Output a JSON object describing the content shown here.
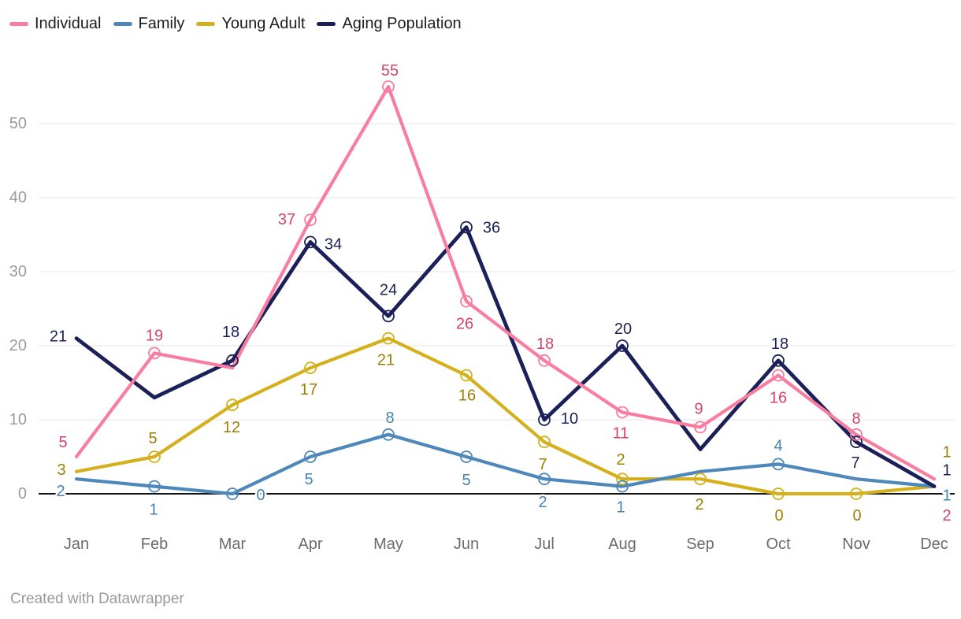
{
  "footer": {
    "text": "Created with Datawrapper"
  },
  "chart_data": {
    "type": "line",
    "title": "",
    "xlabel": "",
    "ylabel": "",
    "categories": [
      "Jan",
      "Feb",
      "Mar",
      "Apr",
      "May",
      "Jun",
      "Jul",
      "Aug",
      "Sep",
      "Oct",
      "Nov",
      "Dec"
    ],
    "y_ticks": [
      0,
      10,
      20,
      30,
      40,
      50
    ],
    "ylim": [
      0,
      58
    ],
    "grid": true,
    "legend_position": "top-left",
    "axis_colors": {
      "y_tick_label": "#9b9b9b",
      "x_tick_label": "#6b6b6b",
      "gridline": "#e6e6e6",
      "zero_line": "#141414"
    },
    "series": [
      {
        "name": "Individual",
        "color": "#f87da0",
        "label_color": "#d2426e",
        "values": [
          5,
          19,
          17,
          37,
          55,
          26,
          18,
          11,
          9,
          16,
          8,
          2
        ],
        "label_offsets": [
          [
            -17,
            -18
          ],
          [
            0,
            -22
          ],
          null,
          [
            -30,
            0
          ],
          [
            2,
            -20
          ],
          [
            -2,
            29
          ],
          [
            1,
            -21
          ],
          [
            -2,
            27
          ],
          [
            -2,
            -23
          ],
          [
            0,
            29
          ],
          [
            0,
            -20
          ],
          [
            16,
            47
          ]
        ]
      },
      {
        "name": "Family",
        "color": "#4e87b9",
        "label_color": "#4484b6",
        "values": [
          2,
          1,
          0,
          5,
          8,
          5,
          2,
          1,
          3,
          4,
          2,
          1
        ],
        "label_offsets": [
          [
            -20,
            16
          ],
          [
            -1,
            30
          ],
          [
            36,
            2
          ],
          [
            -2,
            29
          ],
          [
            2,
            -21
          ],
          [
            0,
            30
          ],
          [
            -2,
            30
          ],
          [
            -2,
            27
          ],
          null,
          [
            0,
            -23
          ],
          null,
          [
            16,
            12
          ]
        ]
      },
      {
        "name": "Young Adult",
        "color": "#d4b01c",
        "label_color": "#9d7f03",
        "values": [
          3,
          5,
          12,
          17,
          21,
          16,
          7,
          2,
          2,
          0,
          0,
          1
        ],
        "label_offsets": [
          [
            -19,
            -2
          ],
          [
            -2,
            -23
          ],
          [
            -1,
            29
          ],
          [
            -2,
            28
          ],
          [
            -3,
            28
          ],
          [
            1,
            26
          ],
          [
            -2,
            29
          ],
          [
            -2,
            -24
          ],
          [
            -1,
            33
          ],
          [
            1,
            28
          ],
          [
            1,
            28
          ],
          [
            16,
            -43
          ]
        ]
      },
      {
        "name": "Aging Population",
        "color": "#1b2059",
        "label_color": "#1b2059",
        "values": [
          21,
          13,
          18,
          34,
          24,
          36,
          10,
          20,
          6,
          18,
          7,
          1
        ],
        "label_offsets": [
          [
            -23,
            -2
          ],
          null,
          [
            -2,
            -36
          ],
          [
            29,
            3
          ],
          [
            0,
            -33
          ],
          [
            32,
            1
          ],
          [
            32,
            -1
          ],
          [
            1,
            -21
          ],
          null,
          [
            2,
            -21
          ],
          [
            -1,
            27
          ],
          [
            16,
            -20
          ]
        ]
      }
    ]
  }
}
